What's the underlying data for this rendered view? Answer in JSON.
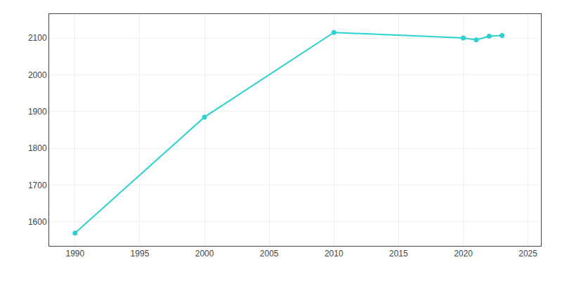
{
  "chart_data": {
    "type": "line",
    "x": [
      1990,
      2000,
      2010,
      2020,
      2021,
      2022,
      2023
    ],
    "values": [
      1570,
      1885,
      2115,
      2100,
      2095,
      2105,
      2107
    ],
    "color": "#2ecfcf",
    "marker": "circle",
    "xlim": [
      1988,
      2026
    ],
    "ylim": [
      1535,
      2165
    ],
    "xticks": [
      1990,
      1995,
      2000,
      2005,
      2010,
      2015,
      2020,
      2025
    ],
    "yticks": [
      1600,
      1700,
      1800,
      1900,
      2000,
      2100
    ],
    "grid": true
  }
}
